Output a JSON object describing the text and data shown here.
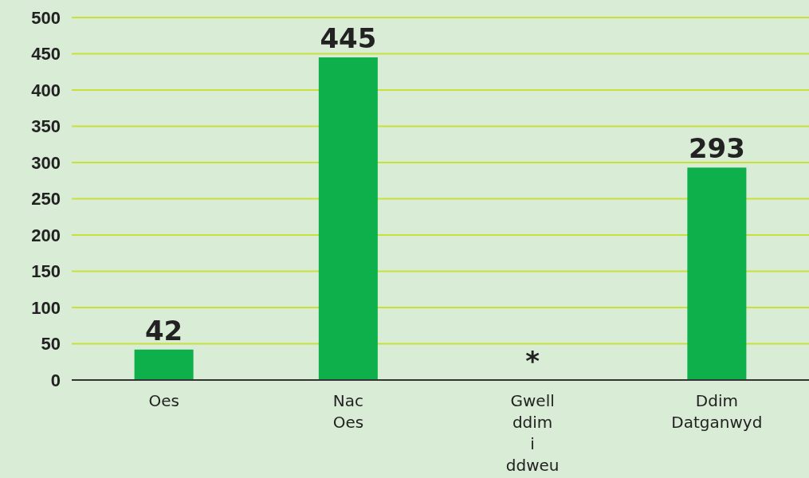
{
  "chart_data": {
    "type": "bar",
    "categories": [
      "Oes",
      "Nac Oes",
      "Gwell ddim i ddweu",
      "Ddim Datganwyd"
    ],
    "values": [
      42,
      445,
      null,
      293
    ],
    "value_labels": [
      "42",
      "445",
      "*",
      "293"
    ],
    "color": "#0db04b",
    "ylim": [
      0,
      500
    ],
    "yticks": [
      0,
      50,
      100,
      150,
      200,
      250,
      300,
      350,
      400,
      450,
      500
    ],
    "grid": "y"
  }
}
